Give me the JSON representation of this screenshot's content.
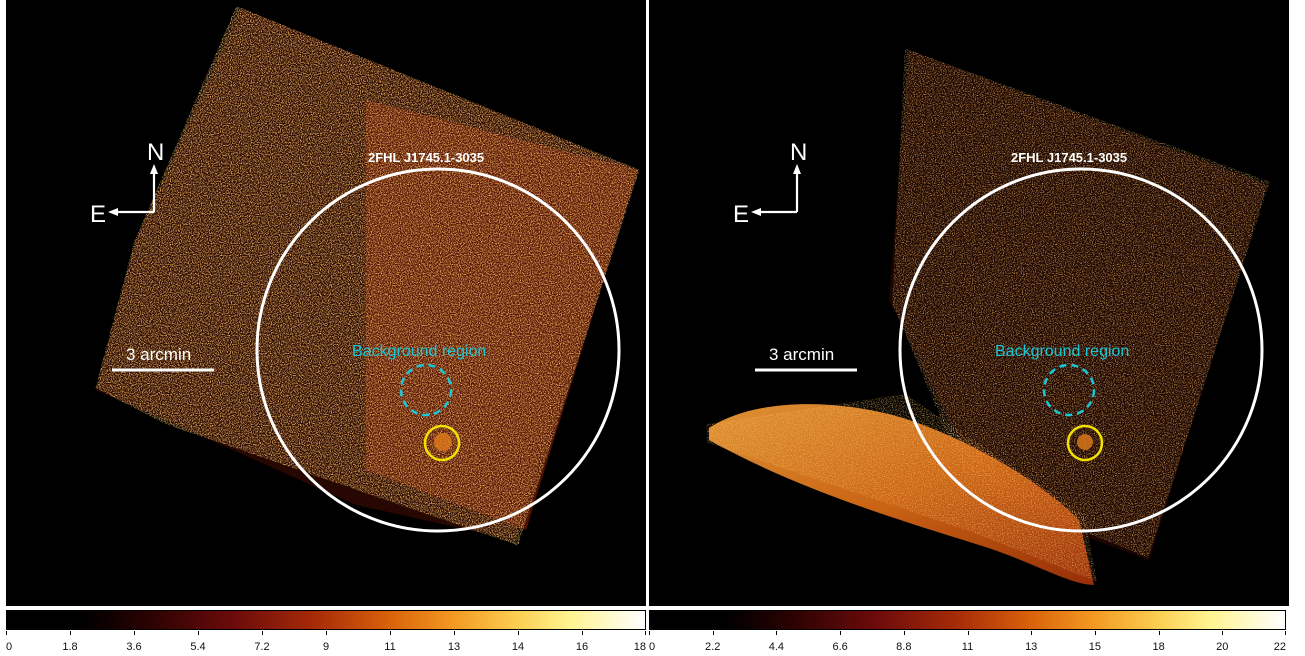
{
  "panels": [
    {
      "id": "left",
      "source_label": "2FHL J1745.1-3035",
      "scale_bar_label": "3 arcmin",
      "compass": {
        "north": "N",
        "east": "E"
      },
      "background_label": "Background region",
      "colorbar_ticks": [
        "0",
        "1.8",
        "3.6",
        "5.4",
        "7.2",
        "9",
        "11",
        "13",
        "14",
        "16",
        "18"
      ]
    },
    {
      "id": "right",
      "source_label": "2FHL J1745.1-3035",
      "scale_bar_label": "3 arcmin",
      "compass": {
        "north": "N",
        "east": "E"
      },
      "background_label": "Background region",
      "colorbar_ticks": [
        "0",
        "2.2",
        "4.4",
        "6.6",
        "8.8",
        "11",
        "13",
        "15",
        "18",
        "20",
        "22"
      ]
    }
  ],
  "colors": {
    "source_circle": "#ffffff",
    "background_circle": "#19c8d8",
    "counterpart_circle": "#f2e200",
    "background_label": "#19c8d8",
    "image_background": "#000000"
  }
}
